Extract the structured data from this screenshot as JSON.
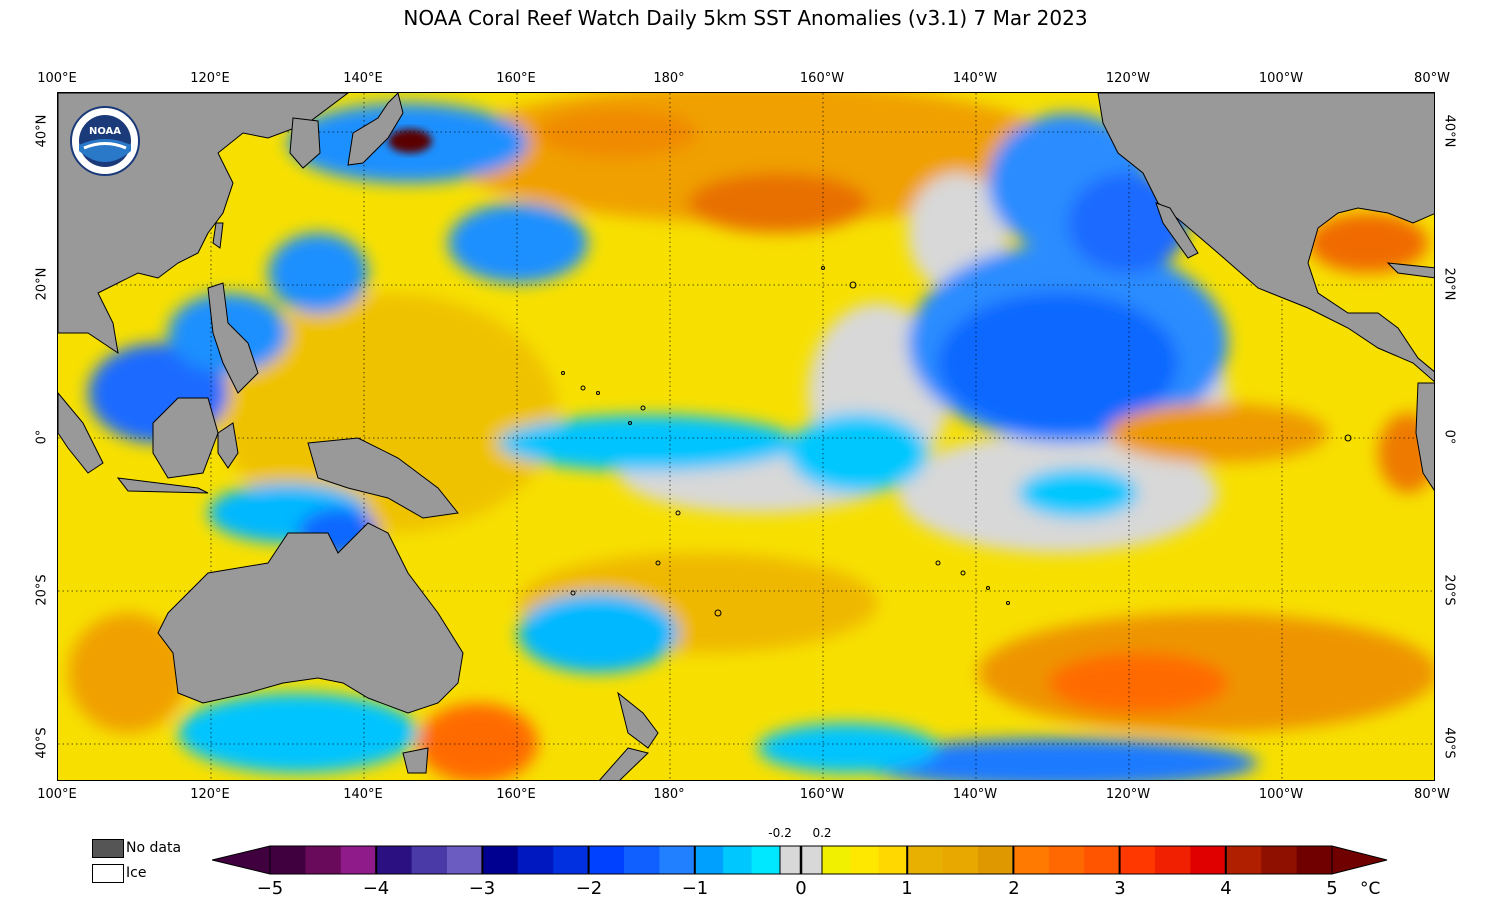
{
  "title": "NOAA Coral Reef Watch Daily 5km SST Anomalies  (v3.1)   7 Mar 2023",
  "lon_labels": [
    "100°E",
    "120°E",
    "140°E",
    "160°E",
    "180°",
    "160°W",
    "140°W",
    "120°W",
    "100°W",
    "80°W"
  ],
  "lat_labels_left": [
    "40°N",
    "20°N",
    "0°",
    "20°S",
    "40°S"
  ],
  "lat_labels_right": [
    "40°N",
    "20°N",
    "0°",
    "20°S",
    "40°S"
  ],
  "legend": {
    "nodata_label": "No data",
    "ice_label": "Ice",
    "nodata_color": "#555555",
    "ice_color": "#ffffff"
  },
  "colorbar": {
    "ticks": [
      "−5",
      "−4",
      "−3",
      "−2",
      "−1",
      "0",
      "1",
      "2",
      "3",
      "4",
      "5"
    ],
    "inner_labels": [
      "-0.2",
      "0.2"
    ],
    "unit": "°C",
    "colors": {
      "neg5_4": [
        "#400040",
        "#6a0a5a",
        "#8f1a8a"
      ],
      "neg4_3": [
        "#2a1080",
        "#4a3aa8",
        "#6a5cc0"
      ],
      "neg3_2": [
        "#000090",
        "#0018c0",
        "#0030e0"
      ],
      "neg2_1": [
        "#0040ff",
        "#1060ff",
        "#2080ff"
      ],
      "neg1_0": [
        "#00a0ff",
        "#00c8ff",
        "#00e8ff"
      ],
      "neutral": "#d8d8d8",
      "pos0_1": [
        "#f0f000",
        "#ffe800",
        "#ffd800"
      ],
      "pos1_2": [
        "#e8b000",
        "#e8a800",
        "#e09800"
      ],
      "pos2_3": [
        "#ff7a00",
        "#ff6800",
        "#ff5400"
      ],
      "pos3_4": [
        "#ff3800",
        "#f02000",
        "#e00000"
      ],
      "pos4_5": [
        "#b02000",
        "#901000",
        "#700000"
      ]
    }
  },
  "map": {
    "land_color": "#999999",
    "ocean_neutral": "#d8d8d8",
    "logo_text": "NOAA"
  }
}
